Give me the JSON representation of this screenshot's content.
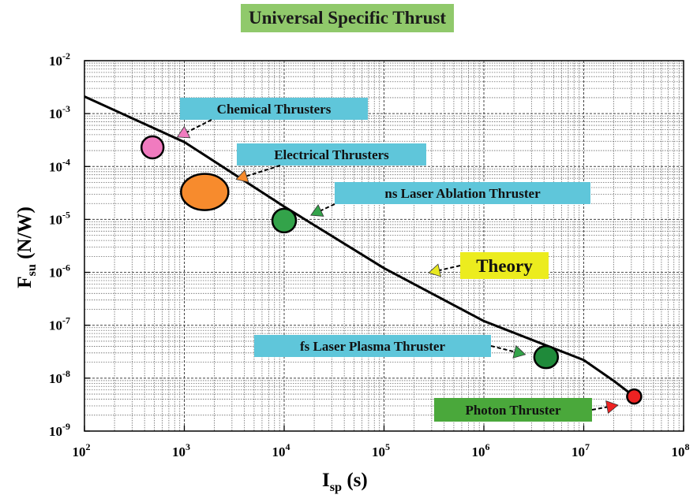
{
  "chart_data": {
    "type": "scatter",
    "title": "Universal Specific Thrust",
    "xlabel": {
      "main": "I",
      "sub": "sp",
      "rest": " (s)"
    },
    "ylabel": {
      "main": "F",
      "sub": "su",
      "rest": " (N/W)"
    },
    "x_scale": "log",
    "y_scale": "log",
    "xlim": [
      100,
      100000000
    ],
    "ylim": [
      1e-09,
      0.01
    ],
    "grid": true,
    "x_ticks": [
      {
        "v": 100,
        "base": "10",
        "exp": "2"
      },
      {
        "v": 1000,
        "base": "10",
        "exp": "3"
      },
      {
        "v": 10000,
        "base": "10",
        "exp": "4"
      },
      {
        "v": 100000,
        "base": "10",
        "exp": "5"
      },
      {
        "v": 1000000,
        "base": "10",
        "exp": "6"
      },
      {
        "v": 10000000,
        "base": "10",
        "exp": "7"
      },
      {
        "v": 100000000,
        "base": "10",
        "exp": "8"
      }
    ],
    "y_ticks": [
      {
        "v": 1e-09,
        "base": "10",
        "exp": "-9"
      },
      {
        "v": 1e-08,
        "base": "10",
        "exp": "-8"
      },
      {
        "v": 1e-07,
        "base": "10",
        "exp": "-7"
      },
      {
        "v": 1e-06,
        "base": "10",
        "exp": "-6"
      },
      {
        "v": 1e-05,
        "base": "10",
        "exp": "-5"
      },
      {
        "v": 0.0001,
        "base": "10",
        "exp": "-4"
      },
      {
        "v": 0.001,
        "base": "10",
        "exp": "-3"
      },
      {
        "v": 0.01,
        "base": "10",
        "exp": "-2"
      }
    ],
    "theory_curve": {
      "x": [
        100,
        1000,
        10000,
        100000,
        1000000,
        10000000,
        20000000,
        32000000
      ],
      "y": [
        0.0021,
        0.00029,
        1.75e-05,
        1.2e-06,
        1.2e-07,
        2.2e-08,
        8.9e-09,
        4.5e-09
      ]
    },
    "points": [
      {
        "name": "chemical-thrusters",
        "x": 480,
        "y": 0.00023,
        "rx": 14,
        "ry": 14,
        "color": "#f07bbf"
      },
      {
        "name": "electrical-thrusters",
        "x": 1600,
        "y": 3.3e-05,
        "rx": 30,
        "ry": 23,
        "color": "#f78b2d"
      },
      {
        "name": "ns-laser-ablation-thruster",
        "x": 10000,
        "y": 9.5e-06,
        "rx": 15,
        "ry": 15,
        "color": "#33a34a"
      },
      {
        "name": "fs-laser-plasma-thruster",
        "x": 4200000,
        "y": 2.5e-08,
        "rx": 15,
        "ry": 14,
        "color": "#1f8a3a"
      },
      {
        "name": "photon-thruster",
        "x": 32000000,
        "y": 4.5e-09,
        "rx": 9,
        "ry": 9,
        "color": "#ee2222"
      }
    ],
    "annotations": [
      {
        "text": "Chemical Thrusters",
        "box_color": "#5fc6da",
        "arrow_x": 850,
        "arrow_y": 0.00036,
        "arrow_color": "#f07bbf"
      },
      {
        "text": "Electrical Thrusters",
        "box_color": "#5fc6da",
        "arrow_x": 3300,
        "arrow_y": 5.7e-05,
        "arrow_color": "#f78b2d"
      },
      {
        "text": "ns Laser Ablation Thruster",
        "box_color": "#5fc6da",
        "arrow_x": 18500,
        "arrow_y": 1.2e-05,
        "arrow_color": "#33a34a"
      },
      {
        "text": "Theory",
        "box_color": "#ecec1e",
        "arrow_x": 280000,
        "arrow_y": 9.8e-07,
        "arrow_color": "#e8e820"
      },
      {
        "text": "fs Laser Plasma Thruster",
        "box_color": "#5fc6da",
        "arrow_x": 2600000,
        "arrow_y": 2.8e-08,
        "arrow_color": "#33a34a"
      },
      {
        "text": "Photon Thruster",
        "box_color": "#4aa83b",
        "arrow_x": 22000000,
        "arrow_y": 3.1e-09,
        "arrow_color": "#ee2222"
      }
    ]
  }
}
